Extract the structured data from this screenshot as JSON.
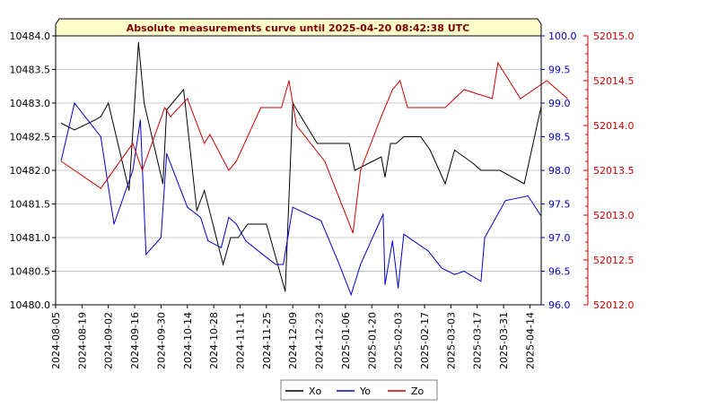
{
  "chart_data": {
    "type": "line",
    "title": "Absolute measurements curve until 2025-04-20 08:42:38 UTC",
    "x_tick_labels": [
      "2024-08-05",
      "2024-08-19",
      "2024-09-02",
      "2024-09-16",
      "2024-09-30",
      "2024-10-14",
      "2024-10-28",
      "2024-11-11",
      "2024-11-25",
      "2024-12-09",
      "2024-12-23",
      "2025-01-06",
      "2025-01-20",
      "2025-02-03",
      "2025-02-17",
      "2025-03-03",
      "2025-03-17",
      "2025-03-31",
      "2025-04-14"
    ],
    "xlim": [
      "2024-08-05",
      "2025-04-20"
    ],
    "axes": {
      "left": {
        "series": "Xo",
        "ylim": [
          10480.0,
          10484.0
        ],
        "ticks": [
          "10480.0",
          "10480.5",
          "10481.0",
          "10481.5",
          "10482.0",
          "10482.5",
          "10483.0",
          "10483.5",
          "10484.0"
        ],
        "color": "#000000"
      },
      "right1": {
        "series": "Yo",
        "ylim": [
          96.0,
          100.0
        ],
        "ticks": [
          "96.0",
          "96.5",
          "97.0",
          "97.5",
          "98.0",
          "98.5",
          "99.0",
          "99.5",
          "100.0"
        ],
        "color": "#0000cc"
      },
      "right2": {
        "series": "Zo",
        "ylim": [
          52012.0,
          52015.0
        ],
        "ticks": [
          "52012.0",
          "52012.5",
          "52013.0",
          "52013.5",
          "52014.0",
          "52014.5",
          "52015.0"
        ],
        "color": "#cc0000"
      }
    },
    "grid": true,
    "legend_placement": "bottom-center",
    "series": [
      {
        "name": "Xo",
        "axis": "left",
        "color": "#000000",
        "points": [
          [
            "2024-08-08",
            10482.7
          ],
          [
            "2024-08-15",
            10482.6
          ],
          [
            "2024-08-26",
            10482.75
          ],
          [
            "2024-08-29",
            10482.8
          ],
          [
            "2024-09-02",
            10483.0
          ],
          [
            "2024-09-13",
            10481.7
          ],
          [
            "2024-09-18",
            10483.9
          ],
          [
            "2024-09-21",
            10483.0
          ],
          [
            "2024-10-01",
            10481.8
          ],
          [
            "2024-10-03",
            10482.9
          ],
          [
            "2024-10-12",
            10483.2
          ],
          [
            "2024-10-19",
            10481.4
          ],
          [
            "2024-10-23",
            10481.7
          ],
          [
            "2024-11-02",
            10480.6
          ],
          [
            "2024-11-06",
            10481.0
          ],
          [
            "2024-11-10",
            10481.0
          ],
          [
            "2024-11-15",
            10481.2
          ],
          [
            "2024-11-25",
            10481.2
          ],
          [
            "2024-12-05",
            10480.2
          ],
          [
            "2024-12-09",
            10483.0
          ],
          [
            "2024-12-22",
            10482.4
          ],
          [
            "2025-01-02",
            10482.4
          ],
          [
            "2025-01-08",
            10482.4
          ],
          [
            "2025-01-11",
            10482.0
          ],
          [
            "2025-01-25",
            10482.2
          ],
          [
            "2025-01-27",
            10481.9
          ],
          [
            "2025-01-30",
            10482.4
          ],
          [
            "2025-02-02",
            10482.4
          ],
          [
            "2025-02-06",
            10482.5
          ],
          [
            "2025-02-15",
            10482.5
          ],
          [
            "2025-02-20",
            10482.3
          ],
          [
            "2025-02-28",
            10481.8
          ],
          [
            "2025-03-05",
            10482.3
          ],
          [
            "2025-03-15",
            10482.1
          ],
          [
            "2025-03-19",
            10482.0
          ],
          [
            "2025-03-29",
            10482.0
          ],
          [
            "2025-04-11",
            10481.8
          ],
          [
            "2025-04-20",
            10482.95
          ]
        ]
      },
      {
        "name": "Yo",
        "axis": "right1",
        "color": "#0000cc",
        "points": [
          [
            "2024-08-08",
            98.15
          ],
          [
            "2024-08-15",
            99.0
          ],
          [
            "2024-08-29",
            98.5
          ],
          [
            "2024-09-05",
            97.2
          ],
          [
            "2024-09-15",
            98.0
          ],
          [
            "2024-09-19",
            98.75
          ],
          [
            "2024-09-22",
            96.75
          ],
          [
            "2024-09-30",
            97.0
          ],
          [
            "2024-10-03",
            98.25
          ],
          [
            "2024-10-14",
            97.45
          ],
          [
            "2024-10-21",
            97.3
          ],
          [
            "2024-10-25",
            96.95
          ],
          [
            "2024-11-01",
            96.85
          ],
          [
            "2024-11-05",
            97.3
          ],
          [
            "2024-11-09",
            97.2
          ],
          [
            "2024-11-14",
            96.95
          ],
          [
            "2024-11-23",
            96.75
          ],
          [
            "2024-11-30",
            96.6
          ],
          [
            "2024-12-04",
            96.6
          ],
          [
            "2024-12-09",
            97.45
          ],
          [
            "2024-12-24",
            97.25
          ],
          [
            "2025-01-02",
            96.65
          ],
          [
            "2025-01-09",
            96.15
          ],
          [
            "2025-01-14",
            96.6
          ],
          [
            "2025-01-26",
            97.35
          ],
          [
            "2025-01-27",
            96.3
          ],
          [
            "2025-01-31",
            96.95
          ],
          [
            "2025-02-03",
            96.25
          ],
          [
            "2025-02-06",
            97.05
          ],
          [
            "2025-02-19",
            96.8
          ],
          [
            "2025-02-26",
            96.55
          ],
          [
            "2025-03-05",
            96.45
          ],
          [
            "2025-03-10",
            96.5
          ],
          [
            "2025-03-19",
            96.35
          ],
          [
            "2025-03-21",
            97.0
          ],
          [
            "2025-04-01",
            97.55
          ],
          [
            "2025-04-13",
            97.62
          ],
          [
            "2025-04-20",
            97.32
          ]
        ]
      },
      {
        "name": "Zo",
        "axis": "right2",
        "color": "#cc0000",
        "points": [
          [
            "2024-08-08",
            52013.6
          ],
          [
            "2024-08-29",
            52013.3
          ],
          [
            "2024-09-15",
            52013.8
          ],
          [
            "2024-09-20",
            52013.5
          ],
          [
            "2024-10-02",
            52014.2
          ],
          [
            "2024-10-05",
            52014.1
          ],
          [
            "2024-10-14",
            52014.3
          ],
          [
            "2024-10-23",
            52013.8
          ],
          [
            "2024-10-26",
            52013.9
          ],
          [
            "2024-11-05",
            52013.5
          ],
          [
            "2024-11-09",
            52013.6
          ],
          [
            "2024-11-22",
            52014.2
          ],
          [
            "2024-12-03",
            52014.2
          ],
          [
            "2024-12-07",
            52014.5
          ],
          [
            "2024-12-11",
            52014.0
          ],
          [
            "2024-12-26",
            52013.6
          ],
          [
            "2025-01-10",
            52012.8
          ],
          [
            "2025-01-14",
            52013.5
          ],
          [
            "2025-01-25",
            52014.1
          ],
          [
            "2025-01-31",
            52014.4
          ],
          [
            "2025-02-04",
            52014.5
          ],
          [
            "2025-02-08",
            52014.2
          ],
          [
            "2025-02-28",
            52014.2
          ],
          [
            "2025-03-05",
            52014.3
          ],
          [
            "2025-03-10",
            52014.4
          ],
          [
            "2025-03-25",
            52014.3
          ],
          [
            "2025-03-28",
            52014.7
          ],
          [
            "2025-04-09",
            52014.3
          ],
          [
            "2025-04-23",
            52014.5
          ],
          [
            "2025-05-04",
            52014.3
          ]
        ]
      }
    ]
  }
}
